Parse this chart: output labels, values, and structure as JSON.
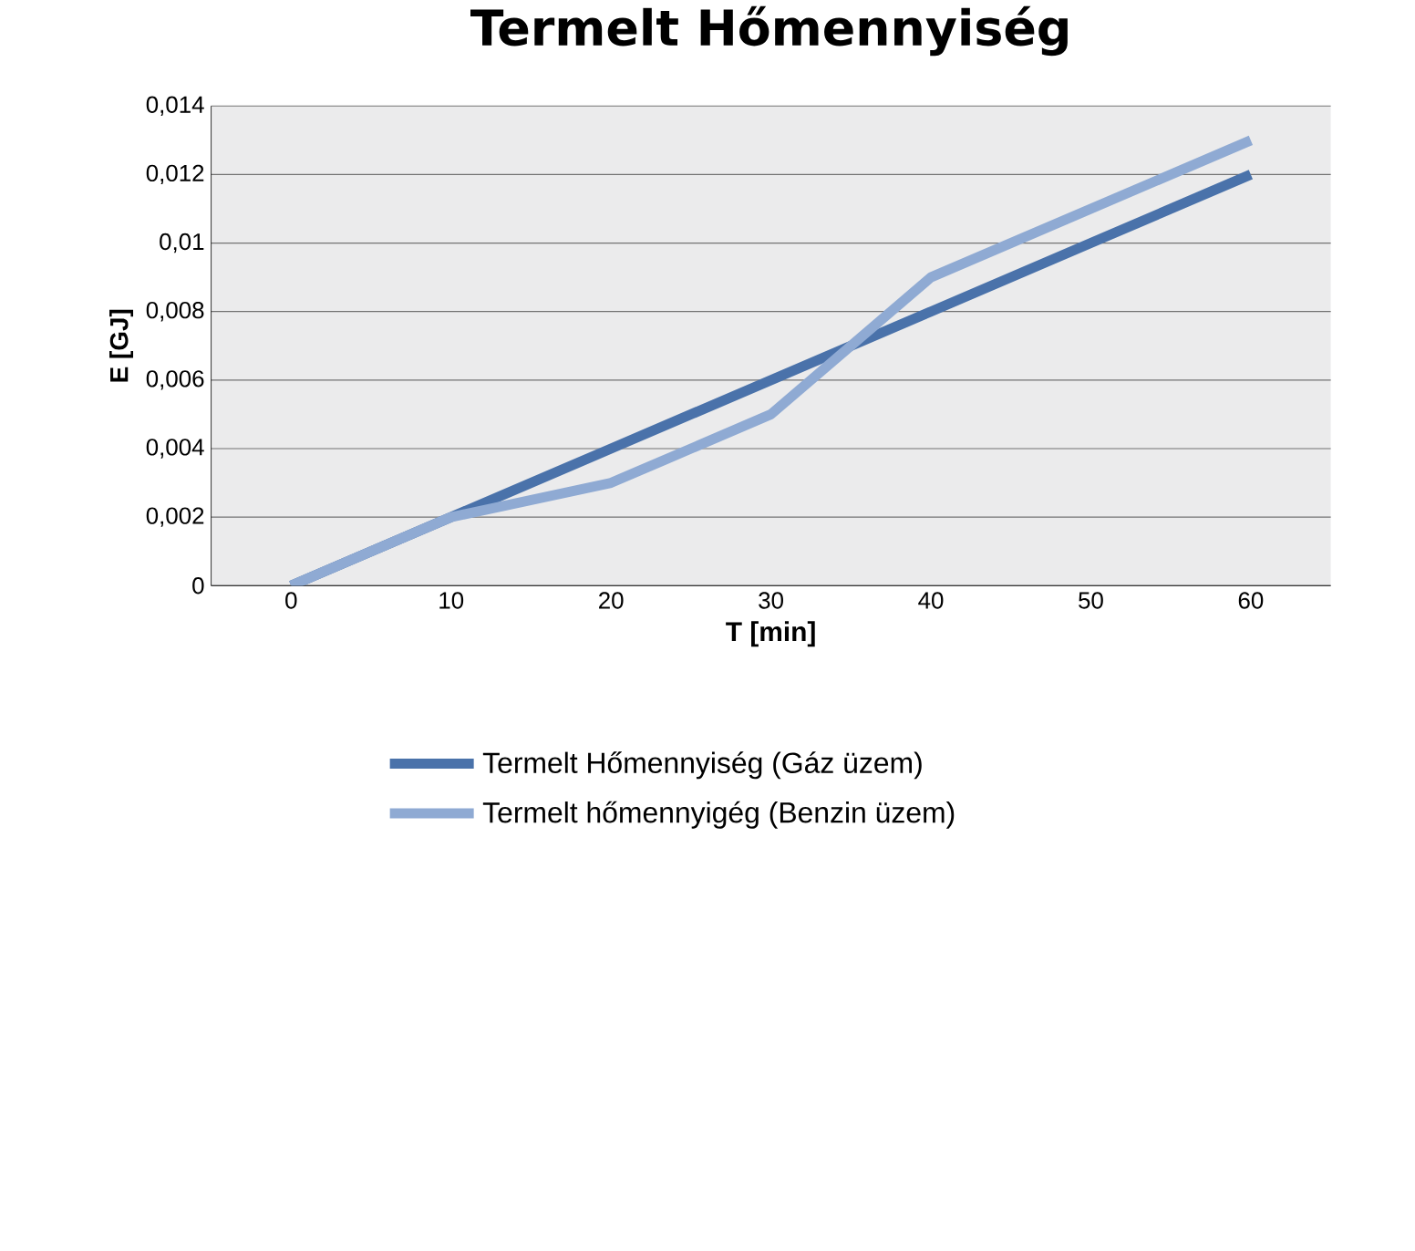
{
  "chart_data": {
    "type": "line",
    "title": "Termelt Hőmennyiség",
    "xlabel": "T [min]",
    "ylabel": "E  [GJ]",
    "categories": [
      "0",
      "10",
      "20",
      "30",
      "40",
      "50",
      "60"
    ],
    "series": [
      {
        "name": "Termelt Hőmennyiség (Gáz üzem)",
        "color": "#4a72aa",
        "values": [
          0,
          0.002,
          0.004,
          0.006,
          0.008,
          0.01,
          0.012
        ]
      },
      {
        "name": "Termelt hőmennyigég (Benzin üzem)",
        "color": "#8faad3",
        "values": [
          0,
          0.002,
          0.003,
          0.005,
          0.009,
          0.011,
          0.013
        ]
      }
    ],
    "ylim": [
      0,
      0.014
    ],
    "yticks": [
      {
        "value": 0,
        "label": "0"
      },
      {
        "value": 0.002,
        "label": "0,002"
      },
      {
        "value": 0.004,
        "label": "0,004"
      },
      {
        "value": 0.006,
        "label": "0,006"
      },
      {
        "value": 0.008,
        "label": "0,008"
      },
      {
        "value": 0.01,
        "label": "0,01"
      },
      {
        "value": 0.012,
        "label": "0,012"
      },
      {
        "value": 0.014,
        "label": "0,014"
      }
    ],
    "grid": "y",
    "legend": "bottom",
    "marker": "none",
    "line_style": "solid"
  }
}
